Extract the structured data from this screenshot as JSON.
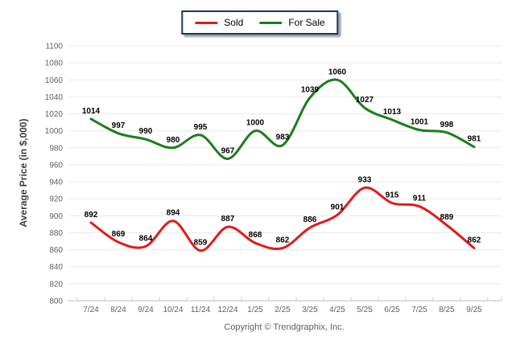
{
  "legend": {
    "items": [
      {
        "label": "Sold"
      },
      {
        "label": "For Sale"
      }
    ]
  },
  "footer": {
    "copyright": "Copyright © Trendgraphix, Inc."
  },
  "chart_data": {
    "type": "line",
    "categories": [
      "7/24",
      "8/24",
      "9/24",
      "10/24",
      "11/24",
      "12/24",
      "1/25",
      "2/25",
      "3/25",
      "4/25",
      "5/25",
      "6/25",
      "7/25",
      "8/25",
      "9/25"
    ],
    "series": [
      {
        "name": "Sold",
        "color": "#e31a1a",
        "values": [
          892,
          869,
          864,
          894,
          859,
          887,
          868,
          862,
          886,
          901,
          933,
          915,
          911,
          889,
          862
        ]
      },
      {
        "name": "For Sale",
        "color": "#1b7d1b",
        "values": [
          1014,
          997,
          990,
          980,
          995,
          967,
          1000,
          983,
          1039,
          1060,
          1027,
          1013,
          1001,
          998,
          981
        ]
      }
    ],
    "title": "",
    "xlabel": "",
    "ylabel": "Average Price (in $,000)",
    "ylim": [
      800,
      1100
    ],
    "ytick_step": 20,
    "legend_position": "top",
    "grid": "horizontal",
    "line_style": "smooth",
    "data_labels": "bold black above points"
  }
}
